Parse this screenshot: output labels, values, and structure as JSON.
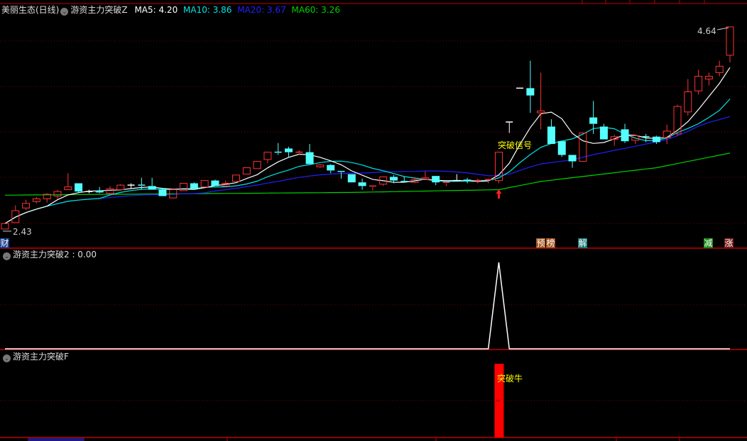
{
  "header": {
    "stock": "美丽生态(日线)",
    "indicator": "游资主力突破Z",
    "ma5": "MA5: 4.20",
    "ma10": "MA10: 3.86",
    "ma20": "MA20: 3.67",
    "ma60": "MA60: 3.26"
  },
  "colors": {
    "up": "#ff3232",
    "down": "#54ffff",
    "ma5": "#ffffff",
    "ma10": "#00e5e5",
    "ma20": "#2020ff",
    "ma60": "#00d000",
    "grid": "#8b0000",
    "signal": "#ffff00"
  },
  "chart_data": [
    {
      "type": "candlestick",
      "title": "美丽生态(日线)",
      "fields": [
        "open",
        "close",
        "high",
        "low"
      ],
      "candles": [
        [
          2.43,
          2.49,
          2.5,
          2.43
        ],
        [
          2.5,
          2.63,
          2.69,
          2.5
        ],
        [
          2.66,
          2.71,
          2.75,
          2.64
        ],
        [
          2.73,
          2.76,
          2.78,
          2.71
        ],
        [
          2.76,
          2.81,
          2.82,
          2.72
        ],
        [
          2.79,
          2.84,
          2.86,
          2.76
        ],
        [
          2.86,
          2.89,
          3.04,
          2.86
        ],
        [
          2.93,
          2.84,
          2.93,
          2.82
        ],
        [
          2.84,
          2.84,
          2.86,
          2.82
        ],
        [
          2.85,
          2.83,
          2.89,
          2.82
        ],
        [
          2.82,
          2.87,
          2.9,
          2.8
        ],
        [
          2.86,
          2.91,
          2.92,
          2.86
        ],
        [
          2.91,
          2.91,
          2.93,
          2.87
        ],
        [
          2.91,
          2.9,
          2.99,
          2.86
        ],
        [
          2.9,
          2.86,
          2.99,
          2.86
        ],
        [
          2.86,
          2.79,
          2.88,
          2.79
        ],
        [
          2.77,
          2.86,
          2.86,
          2.77
        ],
        [
          2.85,
          2.93,
          2.93,
          2.85
        ],
        [
          2.93,
          2.87,
          2.94,
          2.86
        ],
        [
          2.89,
          2.96,
          2.96,
          2.89
        ],
        [
          2.96,
          2.9,
          2.97,
          2.9
        ],
        [
          2.9,
          2.93,
          2.96,
          2.89
        ],
        [
          2.95,
          3.02,
          3.02,
          2.95
        ],
        [
          3.03,
          3.1,
          3.1,
          3.03
        ],
        [
          3.09,
          3.17,
          3.17,
          3.09
        ],
        [
          3.19,
          3.27,
          3.27,
          3.15
        ],
        [
          3.27,
          3.26,
          3.37,
          3.24
        ],
        [
          3.31,
          3.27,
          3.33,
          3.21
        ],
        [
          3.26,
          3.27,
          3.29,
          3.24
        ],
        [
          3.27,
          3.14,
          3.36,
          3.14
        ],
        [
          3.11,
          3.13,
          3.14,
          3.1
        ],
        [
          3.13,
          3.07,
          3.14,
          3.04
        ],
        [
          3.06,
          3.05,
          3.06,
          2.98
        ],
        [
          3.03,
          2.94,
          3.03,
          2.94
        ],
        [
          2.94,
          2.9,
          2.98,
          2.86
        ],
        [
          2.89,
          2.9,
          2.9,
          2.85
        ],
        [
          2.92,
          3.0,
          3.0,
          2.9
        ],
        [
          3.0,
          2.96,
          3.02,
          2.93
        ],
        [
          2.95,
          2.95,
          3.0,
          2.94
        ],
        [
          2.94,
          2.97,
          2.99,
          2.93
        ],
        [
          2.97,
          2.99,
          3.06,
          2.97
        ],
        [
          3.01,
          2.94,
          3.01,
          2.91
        ],
        [
          2.93,
          2.94,
          2.95,
          2.9
        ],
        [
          2.96,
          2.96,
          3.03,
          2.96
        ],
        [
          2.97,
          2.95,
          2.99,
          2.93
        ],
        [
          2.96,
          2.96,
          2.98,
          2.93
        ],
        [
          2.96,
          2.97,
          2.98,
          2.93
        ],
        [
          2.96,
          3.27,
          3.27,
          2.93
        ],
        [
          3.6,
          3.6,
          3.6,
          3.48
        ],
        [
          3.97,
          3.97,
          3.97,
          3.97
        ],
        [
          3.97,
          3.89,
          4.27,
          3.7
        ],
        [
          3.7,
          3.72,
          4.14,
          3.52
        ],
        [
          3.55,
          3.36,
          3.63,
          3.36
        ],
        [
          3.39,
          3.24,
          3.39,
          3.22
        ],
        [
          3.24,
          3.17,
          3.24,
          3.1
        ],
        [
          3.17,
          3.48,
          3.48,
          3.17
        ],
        [
          3.65,
          3.58,
          3.83,
          3.47
        ],
        [
          3.55,
          3.41,
          3.58,
          3.41
        ],
        [
          3.41,
          3.44,
          3.46,
          3.34
        ],
        [
          3.52,
          3.39,
          3.58,
          3.37
        ],
        [
          3.4,
          3.45,
          3.46,
          3.36
        ],
        [
          3.44,
          3.44,
          3.47,
          3.38
        ],
        [
          3.44,
          3.38,
          3.45,
          3.36
        ],
        [
          3.43,
          3.5,
          3.57,
          3.36
        ],
        [
          3.47,
          3.77,
          3.79,
          3.45
        ],
        [
          3.71,
          3.93,
          4.07,
          3.67
        ],
        [
          3.94,
          4.1,
          4.17,
          3.9
        ],
        [
          4.07,
          4.1,
          4.14,
          4.0
        ],
        [
          4.14,
          4.21,
          4.27,
          4.1
        ],
        [
          4.33,
          4.64,
          4.64,
          4.25
        ]
      ],
      "ma60_anchors": [
        [
          0,
          2.8
        ],
        [
          33,
          2.83
        ],
        [
          47,
          2.86
        ],
        [
          51,
          2.95
        ],
        [
          62,
          3.1
        ],
        [
          69,
          3.26
        ]
      ],
      "max_label": "4.64",
      "min_label": "2.43",
      "signal_text": "突破信号",
      "signal_candle": 47,
      "grid": true
    },
    {
      "type": "line",
      "title": "游资主力突破2 : 0.00",
      "peak_candle": 47,
      "peak_value": 1,
      "baseline_value": 0
    },
    {
      "type": "bar",
      "title": "游资主力突破F",
      "bar_candle": 47,
      "bar_text": "突破牛",
      "bar_mark": "^"
    }
  ],
  "tags": {
    "cai": "财",
    "yu": "预",
    "bang": "榜",
    "jie": "解",
    "jian": "减",
    "zhang": "涨"
  }
}
